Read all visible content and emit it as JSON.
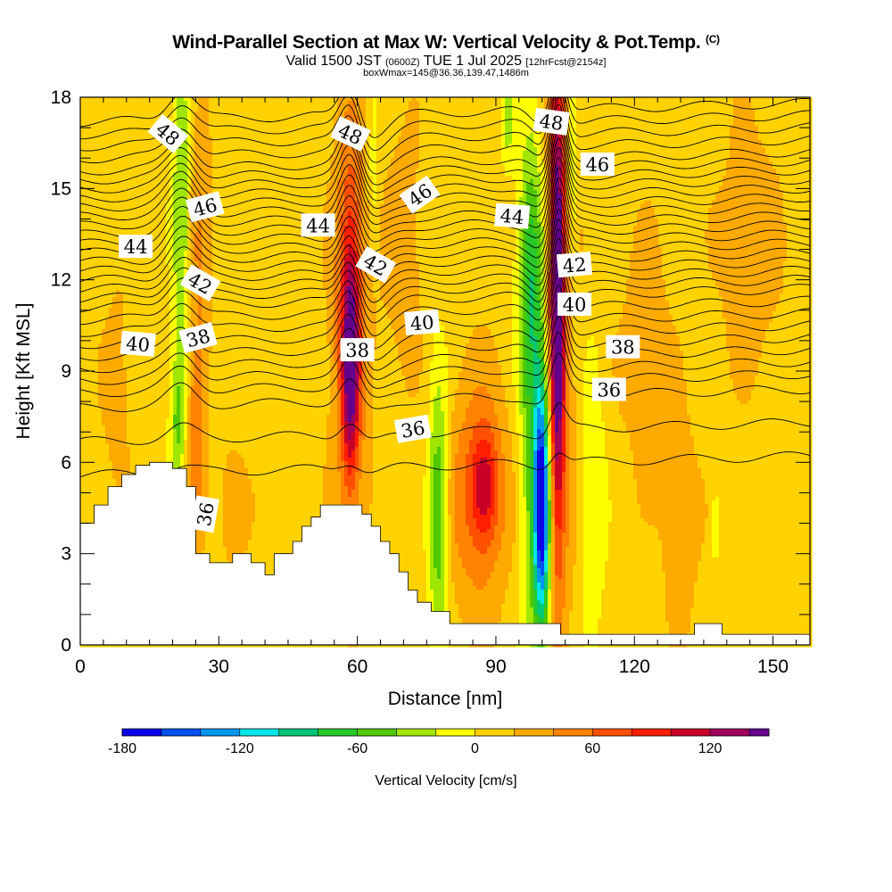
{
  "header": {
    "title": "Wind-Parallel Section at Max W: Vertical Velocity & Pot.Temp.",
    "copyright": "(C)",
    "valid_prefix": "Valid 1500 JST",
    "valid_utc": "(0600Z)",
    "valid_date": "TUE 1 Jul 2025",
    "forecast": "[12hrFcst@2154z]",
    "box_info": "boxWmax=145@36.36,139.47,1486m"
  },
  "chart_data": {
    "type": "heatmap",
    "xlabel": "Distance [nm]",
    "ylabel": "Height [Kft MSL]",
    "xlim": [
      0,
      158
    ],
    "ylim": [
      0,
      18
    ],
    "x_ticks": [
      0,
      30,
      60,
      90,
      120,
      150
    ],
    "y_ticks": [
      0,
      3,
      6,
      9,
      12,
      15,
      18
    ],
    "colorbar": {
      "label": "Vertical Velocity [cm/s]",
      "range": [
        -180,
        150
      ],
      "tick_values": [
        -180,
        -120,
        -60,
        0,
        60,
        120
      ],
      "colors": [
        "#0a00e8",
        "#0050f0",
        "#0096f0",
        "#00e6e6",
        "#00c878",
        "#28c828",
        "#50c800",
        "#a0e600",
        "#ffff00",
        "#ffd200",
        "#ffaa00",
        "#ff8200",
        "#ff5000",
        "#ff1e00",
        "#c80028",
        "#a0005a",
        "#64008c"
      ],
      "band_width": 20
    },
    "background_value": 10,
    "terrain": [
      [
        0,
        4
      ],
      [
        3,
        4
      ],
      [
        3,
        4.6
      ],
      [
        6,
        4.6
      ],
      [
        6,
        5.2
      ],
      [
        9,
        5.2
      ],
      [
        9,
        5.6
      ],
      [
        12,
        5.6
      ],
      [
        12,
        5.9
      ],
      [
        15,
        5.9
      ],
      [
        15,
        6
      ],
      [
        20,
        6
      ],
      [
        20,
        5.8
      ],
      [
        23,
        5.8
      ],
      [
        23,
        5.2
      ],
      [
        25,
        5.2
      ],
      [
        25,
        3
      ],
      [
        28,
        3
      ],
      [
        28,
        2.7
      ],
      [
        33,
        2.7
      ],
      [
        33,
        3
      ],
      [
        37,
        3
      ],
      [
        37,
        2.7
      ],
      [
        40,
        2.7
      ],
      [
        40,
        2.3
      ],
      [
        42,
        2.3
      ],
      [
        42,
        3
      ],
      [
        46,
        3
      ],
      [
        46,
        3.4
      ],
      [
        48,
        3.4
      ],
      [
        48,
        3.9
      ],
      [
        50,
        3.9
      ],
      [
        50,
        4.2
      ],
      [
        52,
        4.2
      ],
      [
        52,
        4.6
      ],
      [
        59,
        4.6
      ],
      [
        59,
        4.6
      ],
      [
        61,
        4.6
      ],
      [
        61,
        4.3
      ],
      [
        63,
        4.3
      ],
      [
        63,
        3.9
      ],
      [
        65,
        3.9
      ],
      [
        65,
        3.4
      ],
      [
        67,
        3.4
      ],
      [
        67,
        3
      ],
      [
        69,
        3
      ],
      [
        69,
        2.4
      ],
      [
        71,
        2.4
      ],
      [
        71,
        1.8
      ],
      [
        73,
        1.8
      ],
      [
        73,
        1.4
      ],
      [
        76,
        1.4
      ],
      [
        76,
        1.1
      ],
      [
        80,
        1.1
      ],
      [
        80,
        0.7
      ],
      [
        85,
        0.7
      ],
      [
        85,
        0.7
      ],
      [
        104,
        0.7
      ],
      [
        104,
        0.35
      ],
      [
        120,
        0.35
      ],
      [
        120,
        0.35
      ],
      [
        133,
        0.35
      ],
      [
        133,
        0.7
      ],
      [
        139,
        0.7
      ],
      [
        139,
        0.35
      ],
      [
        158,
        0.35
      ]
    ],
    "features": [
      {
        "name": "updraft-58",
        "x": 58.5,
        "y": 9.3,
        "sx": 1.3,
        "sy": 2.6,
        "value": 120
      },
      {
        "name": "updraft-58-halo",
        "x": 58.5,
        "y": 9,
        "sx": 3.2,
        "sy": 4.5,
        "value": 40
      },
      {
        "name": "updraft-58-upper",
        "x": 58.5,
        "y": 14.5,
        "sx": 2.2,
        "sy": 3,
        "value": 35
      },
      {
        "name": "updraft-103",
        "x": 103.3,
        "y": 11.5,
        "sx": 1.1,
        "sy": 5.5,
        "value": 135
      },
      {
        "name": "updraft-103-halo",
        "x": 103.3,
        "y": 10,
        "sx": 2.8,
        "sy": 7,
        "value": 50
      },
      {
        "name": "downdraft-100",
        "x": 100,
        "y": 4.5,
        "sx": 1.2,
        "sy": 2.8,
        "value": -170
      },
      {
        "name": "downdraft-99-halo",
        "x": 98.5,
        "y": 8,
        "sx": 2.2,
        "sy": 6,
        "value": -80
      },
      {
        "name": "downdraft-97-upper",
        "x": 97,
        "y": 12.5,
        "sx": 1.8,
        "sy": 2.5,
        "value": -40
      },
      {
        "name": "downdraft-106",
        "x": 106.5,
        "y": 15,
        "sx": 0.9,
        "sy": 3,
        "value": -40
      },
      {
        "name": "downdraft-91-upper",
        "x": 92.5,
        "y": 17.5,
        "sx": 0.9,
        "sy": 1.2,
        "value": -45
      },
      {
        "name": "downdraft-78",
        "x": 77.5,
        "y": 4.5,
        "sx": 1.5,
        "sy": 3.2,
        "value": -75
      },
      {
        "name": "downdraft-22",
        "x": 22,
        "y": 14,
        "sx": 1.5,
        "sy": 4.5,
        "value": -55
      },
      {
        "name": "downdraft-21",
        "x": 21,
        "y": 7.2,
        "sx": 1.2,
        "sy": 1.4,
        "value": -45
      },
      {
        "name": "downdraft-62",
        "x": 63.5,
        "y": 15.5,
        "sx": 0.9,
        "sy": 2,
        "value": -25
      },
      {
        "name": "downdraft-110",
        "x": 111,
        "y": 5,
        "sx": 2,
        "sy": 3.5,
        "value": -30
      },
      {
        "name": "downdraft-137",
        "x": 137.5,
        "y": 4,
        "sx": 0.6,
        "sy": 1.2,
        "value": -25
      },
      {
        "name": "updraft-87",
        "x": 86,
        "y": 5,
        "sx": 5,
        "sy": 2.8,
        "value": 50
      },
      {
        "name": "updraft-88-core",
        "x": 87.5,
        "y": 5.2,
        "sx": 2,
        "sy": 1.3,
        "value": 65
      },
      {
        "name": "updraft-25",
        "x": 25,
        "y": 7,
        "sx": 1.5,
        "sy": 2.5,
        "value": 45
      },
      {
        "name": "updraft-25-upper",
        "x": 25.5,
        "y": 14,
        "sx": 2,
        "sy": 4,
        "value": 30
      },
      {
        "name": "updraft-8",
        "x": 8,
        "y": 8.5,
        "sx": 2.5,
        "sy": 2.5,
        "value": 20
      },
      {
        "name": "updraft-34",
        "x": 33,
        "y": 4.5,
        "sx": 2.5,
        "sy": 1.5,
        "value": 25
      },
      {
        "name": "updraft-70",
        "x": 70,
        "y": 13,
        "sx": 3,
        "sy": 3,
        "value": 25
      },
      {
        "name": "updraft-125",
        "x": 122,
        "y": 10,
        "sx": 4,
        "sy": 3,
        "value": 25
      },
      {
        "name": "updraft-130",
        "x": 130,
        "y": 4,
        "sx": 3,
        "sy": 2.5,
        "value": 25
      },
      {
        "name": "updraft-140",
        "x": 145,
        "y": 13,
        "sx": 5,
        "sy": 3,
        "value": 25
      },
      {
        "name": "weak-down-118",
        "x": 118,
        "y": 14,
        "sx": 3,
        "sy": 3,
        "value": -5
      }
    ],
    "isentropes": [
      {
        "level": 34,
        "base": 5.9
      },
      {
        "level": 35,
        "base": 7.0
      },
      {
        "level": 36,
        "base": 8.1
      },
      {
        "level": 36.5,
        "base": 8.6
      },
      {
        "level": 37,
        "base": 9.0
      },
      {
        "level": 37.5,
        "base": 9.4
      },
      {
        "level": 38,
        "base": 9.8
      },
      {
        "level": 38.5,
        "base": 10.2
      },
      {
        "level": 39,
        "base": 10.6
      },
      {
        "level": 39.5,
        "base": 11.0
      },
      {
        "level": 40,
        "base": 11.4
      },
      {
        "level": 40.5,
        "base": 11.7
      },
      {
        "level": 41,
        "base": 12.0
      },
      {
        "level": 41.5,
        "base": 12.3
      },
      {
        "level": 42,
        "base": 12.6
      },
      {
        "level": 42.5,
        "base": 12.9
      },
      {
        "level": 43,
        "base": 13.2
      },
      {
        "level": 43.5,
        "base": 13.5
      },
      {
        "level": 44,
        "base": 13.8
      },
      {
        "level": 44.5,
        "base": 14.1
      },
      {
        "level": 45,
        "base": 14.4
      },
      {
        "level": 45.5,
        "base": 14.7
      },
      {
        "level": 46,
        "base": 15.0
      },
      {
        "level": 46.5,
        "base": 15.3
      },
      {
        "level": 47,
        "base": 15.6
      },
      {
        "level": 47.5,
        "base": 15.9
      },
      {
        "level": 48,
        "base": 16.3
      },
      {
        "level": 48.5,
        "base": 16.7
      },
      {
        "level": 49,
        "base": 17.1
      },
      {
        "level": 49.5,
        "base": 17.5
      }
    ],
    "isentrope_labels": [
      {
        "text": "48",
        "x": 19,
        "y": 16.8,
        "angle": 40
      },
      {
        "text": "48",
        "x": 58.5,
        "y": 16.8,
        "angle": 25
      },
      {
        "text": "48",
        "x": 102,
        "y": 17.2,
        "angle": 8
      },
      {
        "text": "46",
        "x": 27,
        "y": 14.4,
        "angle": -15
      },
      {
        "text": "46",
        "x": 73.5,
        "y": 14.8,
        "angle": -35
      },
      {
        "text": "46",
        "x": 112,
        "y": 15.8,
        "angle": 0
      },
      {
        "text": "44",
        "x": 12,
        "y": 13.1,
        "angle": 0
      },
      {
        "text": "44",
        "x": 51.5,
        "y": 13.8,
        "angle": 0
      },
      {
        "text": "44",
        "x": 93.5,
        "y": 14.1,
        "angle": 5
      },
      {
        "text": "42",
        "x": 26,
        "y": 11.9,
        "angle": 30
      },
      {
        "text": "42",
        "x": 64,
        "y": 12.5,
        "angle": 30
      },
      {
        "text": "42",
        "x": 107,
        "y": 12.5,
        "angle": -5
      },
      {
        "text": "40",
        "x": 12.5,
        "y": 9.9,
        "angle": 5
      },
      {
        "text": "40",
        "x": 74,
        "y": 10.6,
        "angle": -5
      },
      {
        "text": "40",
        "x": 107,
        "y": 11.2,
        "angle": 0
      },
      {
        "text": "38",
        "x": 25.5,
        "y": 10.1,
        "angle": -15
      },
      {
        "text": "38",
        "x": 60,
        "y": 9.7,
        "angle": 0
      },
      {
        "text": "38",
        "x": 117.5,
        "y": 9.8,
        "angle": 0
      },
      {
        "text": "36",
        "x": 72,
        "y": 7.1,
        "angle": -10
      },
      {
        "text": "36",
        "x": 114.5,
        "y": 8.4,
        "angle": 0
      },
      {
        "text": "36",
        "x": 27,
        "y": 4.3,
        "angle": -80
      }
    ]
  }
}
